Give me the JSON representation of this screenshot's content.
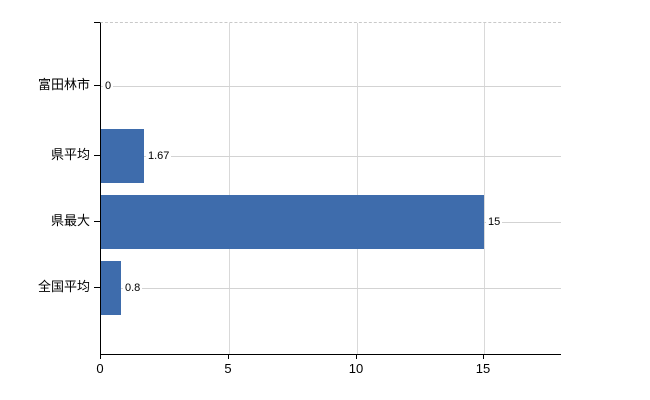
{
  "chart_data": {
    "type": "bar",
    "orientation": "horizontal",
    "title": "",
    "xlabel": "",
    "ylabel": "",
    "categories": [
      "富田林市",
      "県平均",
      "県最大",
      "全国平均"
    ],
    "values": [
      0,
      1.67,
      15,
      0.8
    ],
    "value_labels": [
      "0",
      "1.67",
      "15",
      "0.8"
    ],
    "x_ticks": [
      0,
      5,
      10,
      15
    ],
    "x_tick_labels": [
      "0",
      "5",
      "10",
      "15"
    ],
    "xlim": [
      0,
      18
    ],
    "grid": true,
    "legend": false,
    "colors": {
      "bar": "#3e6cac",
      "axis": "#000000",
      "vertical_gridline": "#d9d9d9",
      "category_line": "#d3d3d3",
      "top_border": "#c9c9c9",
      "background": "#ffffff",
      "text": "#000000"
    }
  }
}
